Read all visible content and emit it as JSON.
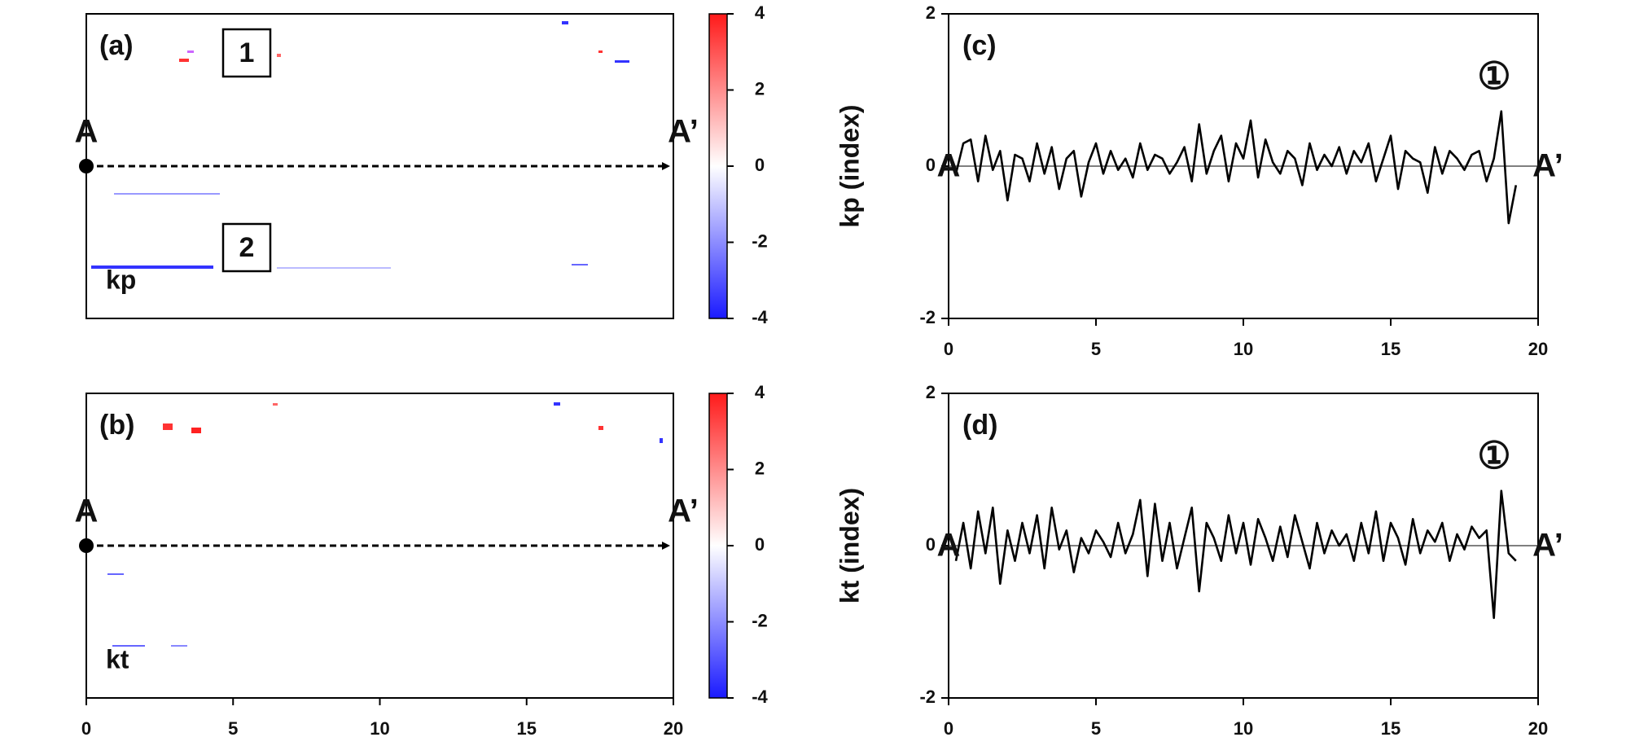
{
  "chart_data": [
    {
      "type": "heatmap",
      "panel_label": "(a)",
      "field_label": "kp",
      "start_label": "A",
      "end_label": "A’",
      "boxes": [
        "1",
        "2"
      ],
      "clim": [
        -4,
        4
      ],
      "cticks": [
        4,
        2,
        0,
        -2,
        -4
      ]
    },
    {
      "type": "heatmap",
      "panel_label": "(b)",
      "field_label": "kt",
      "start_label": "A",
      "end_label": "A’",
      "clim": [
        -4,
        4
      ],
      "cticks": [
        4,
        2,
        0,
        -2,
        -4
      ],
      "xlim": [
        0,
        20
      ],
      "xticks": [
        0,
        5,
        10,
        15,
        20
      ]
    },
    {
      "type": "line",
      "panel_label": "(c)",
      "ylabel": "kp (index)",
      "marker": "①",
      "start_label": "A",
      "end_label": "A’",
      "color": "#000000",
      "xlim": [
        0,
        20
      ],
      "ylim": [
        -2,
        2
      ],
      "xticks": [
        0,
        5,
        10,
        15,
        20
      ],
      "yticks": [
        -2,
        0,
        2
      ],
      "x": [
        0.25,
        0.5,
        0.75,
        1,
        1.25,
        1.5,
        1.75,
        2,
        2.25,
        2.5,
        2.75,
        3,
        3.25,
        3.5,
        3.75,
        4,
        4.25,
        4.5,
        4.75,
        5,
        5.25,
        5.5,
        5.75,
        6,
        6.25,
        6.5,
        6.75,
        7,
        7.25,
        7.5,
        7.75,
        8,
        8.25,
        8.5,
        8.75,
        9,
        9.25,
        9.5,
        9.75,
        10,
        10.25,
        10.5,
        10.75,
        11,
        11.25,
        11.5,
        11.75,
        12,
        12.25,
        12.5,
        12.75,
        13,
        13.25,
        13.5,
        13.75,
        14,
        14.25,
        14.5,
        14.75,
        15,
        15.25,
        15.5,
        15.75,
        16,
        16.25,
        16.5,
        16.75,
        17,
        17.25,
        17.5,
        17.75,
        18,
        18.25,
        18.5,
        18.75,
        19,
        19.25
      ],
      "values": [
        -0.1,
        0.3,
        0.35,
        -0.2,
        0.4,
        -0.05,
        0.2,
        -0.45,
        0.15,
        0.1,
        -0.2,
        0.3,
        -0.1,
        0.25,
        -0.3,
        0.1,
        0.2,
        -0.4,
        0.05,
        0.3,
        -0.1,
        0.2,
        -0.05,
        0.1,
        -0.15,
        0.3,
        -0.05,
        0.15,
        0.1,
        -0.1,
        0.05,
        0.25,
        -0.2,
        0.55,
        -0.1,
        0.2,
        0.4,
        -0.2,
        0.3,
        0.1,
        0.6,
        -0.15,
        0.35,
        0.05,
        -0.1,
        0.2,
        0.1,
        -0.25,
        0.3,
        -0.05,
        0.15,
        0.0,
        0.25,
        -0.1,
        0.2,
        0.05,
        0.3,
        -0.2,
        0.1,
        0.4,
        -0.3,
        0.2,
        0.1,
        0.05,
        -0.35,
        0.25,
        -0.1,
        0.2,
        0.1,
        -0.05,
        0.15,
        0.2,
        -0.2,
        0.1,
        0.72,
        -0.75,
        -0.25
      ]
    },
    {
      "type": "line",
      "panel_label": "(d)",
      "ylabel": "kt (index)",
      "marker": "①",
      "start_label": "A",
      "end_label": "A’",
      "color": "#000000",
      "xlim": [
        0,
        20
      ],
      "ylim": [
        -2,
        2
      ],
      "xticks": [
        0,
        5,
        10,
        15,
        20
      ],
      "yticks": [
        -2,
        0,
        2
      ],
      "x": [
        0.25,
        0.5,
        0.75,
        1,
        1.25,
        1.5,
        1.75,
        2,
        2.25,
        2.5,
        2.75,
        3,
        3.25,
        3.5,
        3.75,
        4,
        4.25,
        4.5,
        4.75,
        5,
        5.25,
        5.5,
        5.75,
        6,
        6.25,
        6.5,
        6.75,
        7,
        7.25,
        7.5,
        7.75,
        8,
        8.25,
        8.5,
        8.75,
        9,
        9.25,
        9.5,
        9.75,
        10,
        10.25,
        10.5,
        10.75,
        11,
        11.25,
        11.5,
        11.75,
        12,
        12.25,
        12.5,
        12.75,
        13,
        13.25,
        13.5,
        13.75,
        14,
        14.25,
        14.5,
        14.75,
        15,
        15.25,
        15.5,
        15.75,
        16,
        16.25,
        16.5,
        16.75,
        17,
        17.25,
        17.5,
        17.75,
        18,
        18.25,
        18.5,
        18.75,
        19,
        19.25
      ],
      "values": [
        -0.2,
        0.3,
        -0.3,
        0.45,
        -0.1,
        0.5,
        -0.5,
        0.2,
        -0.2,
        0.3,
        -0.1,
        0.4,
        -0.3,
        0.5,
        -0.05,
        0.2,
        -0.35,
        0.1,
        -0.1,
        0.2,
        0.05,
        -0.15,
        0.3,
        -0.1,
        0.15,
        0.6,
        -0.4,
        0.55,
        -0.2,
        0.3,
        -0.3,
        0.1,
        0.5,
        -0.6,
        0.3,
        0.1,
        -0.2,
        0.4,
        -0.1,
        0.3,
        -0.25,
        0.35,
        0.1,
        -0.2,
        0.25,
        -0.15,
        0.4,
        0.05,
        -0.3,
        0.3,
        -0.1,
        0.2,
        0.0,
        0.15,
        -0.2,
        0.3,
        -0.1,
        0.45,
        -0.2,
        0.3,
        0.1,
        -0.25,
        0.35,
        -0.1,
        0.2,
        0.05,
        0.3,
        -0.2,
        0.15,
        -0.05,
        0.25,
        0.1,
        0.2,
        -0.95,
        0.72,
        -0.1,
        -0.2
      ]
    }
  ]
}
